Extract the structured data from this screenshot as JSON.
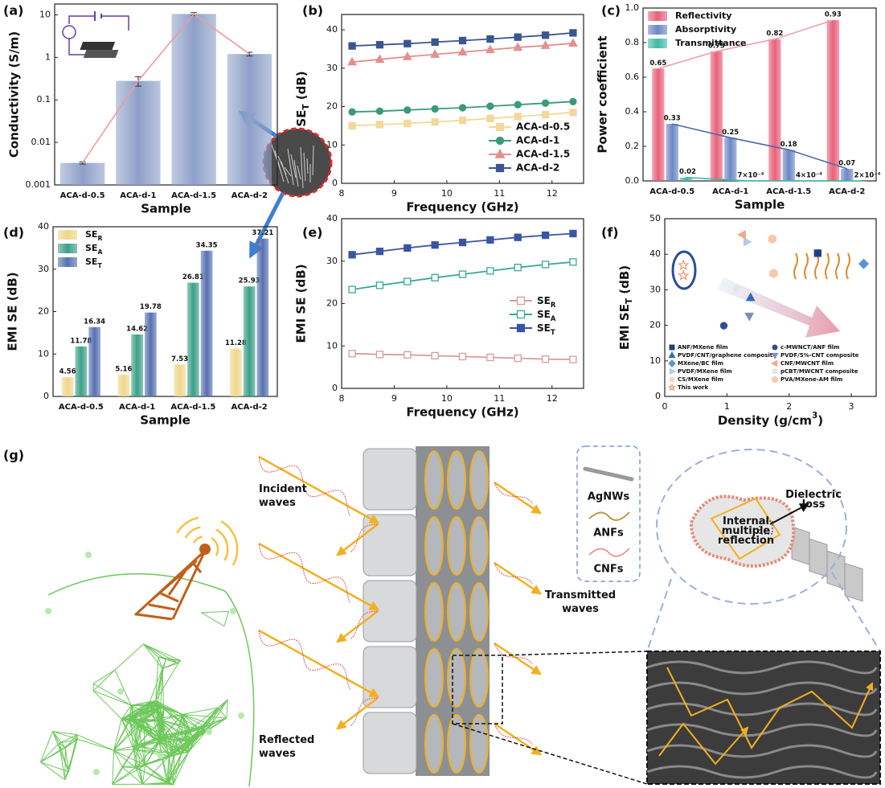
{
  "chart_data": [
    {
      "type": "bar",
      "label": "(a)",
      "ylabel": "Conductivity (S/m)",
      "xlabel": "Sample",
      "log": true,
      "categories": [
        "ACA-d-0.5",
        "ACA-d-1",
        "ACA-d-1.5",
        "ACA-d-2"
      ],
      "series": [
        {
          "color": "#8ea0c9",
          "line_color": "#f29a9a",
          "values": [
            0.0033,
            0.28,
            10.5,
            1.2
          ],
          "errors": [
            0.0002,
            0.07,
            0.8,
            0.12
          ]
        }
      ],
      "ylim": [
        0.001,
        18
      ],
      "yticks": [
        0.001,
        0.01,
        0.1,
        1,
        10
      ],
      "data_labels": false
    },
    {
      "type": "line",
      "label": "(b)",
      "ylabel": [
        {
          "text": "SE"
        },
        {
          "text": "T",
          "sub": true
        },
        {
          "text": " (dB)"
        }
      ],
      "xlabel": "Frequency (GHz)",
      "x": [
        8.2,
        8.725,
        9.25,
        9.775,
        10.3,
        10.825,
        11.35,
        11.875,
        12.4
      ],
      "series": [
        {
          "name": "ACA-d-0.5",
          "color": "#f2d99a",
          "marker": "square",
          "values": [
            15.0,
            15.3,
            15.6,
            16.0,
            16.4,
            16.9,
            17.4,
            17.9,
            18.5
          ]
        },
        {
          "name": "ACA-d-1",
          "color": "#3a9a7a",
          "marker": "circle",
          "values": [
            18.6,
            18.8,
            19.1,
            19.4,
            19.7,
            20.1,
            20.5,
            20.9,
            21.3
          ]
        },
        {
          "name": "ACA-d-1.5",
          "color": "#e3908e",
          "marker": "triangle",
          "values": [
            31.6,
            32.3,
            33.0,
            33.6,
            34.2,
            34.8,
            35.4,
            35.9,
            36.5
          ]
        },
        {
          "name": "ACA-d-2",
          "color": "#3b5590",
          "marker": "square",
          "values": [
            35.8,
            36.1,
            36.4,
            36.8,
            37.2,
            37.6,
            38.1,
            38.6,
            39.2
          ]
        }
      ],
      "xlim": [
        8,
        12.6
      ],
      "xticks": [
        8,
        9,
        10,
        11,
        12
      ],
      "ylim": [
        0,
        44
      ],
      "yticks": [
        0,
        10,
        20,
        30,
        40
      ],
      "legend": "lower right"
    },
    {
      "type": "bar",
      "label": "(c)",
      "ylabel": "Power coefficient",
      "xlabel": "Sample",
      "categories": [
        "ACA-d-0.5",
        "ACA-d-1",
        "ACA-d-1.5",
        "ACA-d-2"
      ],
      "series": [
        {
          "name": "Reflectivity",
          "color": "#e8607a",
          "line_color": "#f2a0a8",
          "values": [
            0.65,
            0.75,
            0.82,
            0.93
          ]
        },
        {
          "name": "Absorptivity",
          "color": "#6b87c6",
          "line_color": "#4a6aaa",
          "values": [
            0.33,
            0.25,
            0.18,
            0.07
          ]
        },
        {
          "name": "Transmittance",
          "color": "#3fb8a8",
          "line_color": "#3fb8a8",
          "values": [
            0.02,
            0.0007,
            0.0004,
            0.0002
          ],
          "value_labels": [
            "0.02",
            "7×10⁻⁴",
            "4×10⁻⁴",
            "2×10⁻⁴"
          ]
        }
      ],
      "ylim": [
        0,
        1.0
      ],
      "yticks": [
        {
          "value": 0,
          "label": "0.0"
        },
        0.2,
        0.4,
        0.6,
        0.8,
        {
          "value": 1.0,
          "label": "1.0"
        }
      ],
      "data_labels": true,
      "legend": "upper left"
    },
    {
      "type": "bar",
      "label": "(d)",
      "ylabel": "EMI SE (dB)",
      "xlabel": "Sample",
      "categories": [
        "ACA-d-0.5",
        "ACA-d-1",
        "ACA-d-1.5",
        "ACA-d-2"
      ],
      "series": [
        {
          "name": [
            {
              "text": "SE"
            },
            {
              "text": "R",
              "sub": true
            }
          ],
          "color": "#f0d68a",
          "values": [
            4.56,
            5.16,
            7.53,
            11.28
          ]
        },
        {
          "name": [
            {
              "text": "SE"
            },
            {
              "text": "A",
              "sub": true
            }
          ],
          "color": "#3a9f87",
          "values": [
            11.78,
            14.62,
            26.81,
            25.93
          ]
        },
        {
          "name": [
            {
              "text": "SE"
            },
            {
              "text": "T",
              "sub": true
            }
          ],
          "color": "#5670b0",
          "values": [
            16.34,
            19.78,
            34.35,
            37.21
          ]
        }
      ],
      "ylim": [
        0,
        40
      ],
      "yticks": [
        0,
        10,
        20,
        30,
        40
      ],
      "data_labels": true,
      "legend": "upper left"
    },
    {
      "type": "line",
      "label": "(e)",
      "ylabel": "EMI SE (dB)",
      "xlabel": "Frequency (GHz)",
      "x": [
        8.2,
        8.725,
        9.25,
        9.775,
        10.3,
        10.825,
        11.35,
        11.875,
        12.4
      ],
      "series": [
        {
          "name": [
            {
              "text": "SE"
            },
            {
              "text": "R",
              "sub": true
            }
          ],
          "color": "#d99b9b",
          "marker": "square",
          "open": true,
          "values": [
            8.2,
            8.0,
            7.9,
            7.7,
            7.5,
            7.3,
            7.1,
            6.9,
            6.8
          ]
        },
        {
          "name": [
            {
              "text": "SE"
            },
            {
              "text": "A",
              "sub": true
            }
          ],
          "color": "#3aa89a",
          "marker": "square",
          "open": true,
          "values": [
            23.3,
            24.3,
            25.2,
            26.1,
            26.9,
            27.7,
            28.5,
            29.2,
            29.8
          ]
        },
        {
          "name": [
            {
              "text": "SE"
            },
            {
              "text": "T",
              "sub": true
            }
          ],
          "color": "#3a55a4",
          "marker": "square",
          "values": [
            31.5,
            32.3,
            33.1,
            33.8,
            34.4,
            35.0,
            35.6,
            36.1,
            36.5
          ]
        }
      ],
      "xlim": [
        8,
        12.6
      ],
      "xticks": [
        8,
        9,
        10,
        11,
        12
      ],
      "ylim": [
        0,
        40
      ],
      "yticks": [
        0,
        10,
        20,
        30,
        40
      ],
      "legend": "center right"
    },
    {
      "type": "scatter",
      "label": "(f)",
      "ylabel": [
        {
          "text": "EMI SE"
        },
        {
          "text": "T",
          "sub": true
        },
        {
          "text": " (dB)"
        }
      ],
      "xlabel": [
        {
          "text": "Density (g/cm"
        },
        {
          "text": "3",
          "sup": true
        },
        {
          "text": ")"
        }
      ],
      "series": [
        {
          "name": "ANF/MXene film",
          "color": "#1f3f8a",
          "marker": "square",
          "x": [
            2.46
          ],
          "values": [
            40.3
          ]
        },
        {
          "name": "PVDF/CNT/graphene composite",
          "color": "#2f6db5",
          "marker": "triangle",
          "x": [
            1.38
          ],
          "values": [
            27.8
          ]
        },
        {
          "name": "MXene/BC film",
          "color": "#5b95cf",
          "marker": "diamond",
          "x": [
            3.2
          ],
          "values": [
            37.3
          ]
        },
        {
          "name": "PVDF/MXene film",
          "color": "#b9c9e8",
          "marker": "triangle-right",
          "x": [
            1.32
          ],
          "values": [
            43.5
          ]
        },
        {
          "name": "CS/MXene film",
          "color": "#f6d6c6",
          "marker": "circle",
          "x": [
            1.75
          ],
          "values": [
            34.8
          ]
        },
        {
          "name": "This work",
          "color": "#f29a7a",
          "marker": "star",
          "open": true,
          "x": [
            0.3,
            0.3
          ],
          "values": [
            36.9,
            34.0
          ]
        },
        {
          "name": "c-MWNCT/ANF film",
          "color": "#2d4f8f",
          "marker": "circle",
          "x": [
            0.95
          ],
          "values": [
            19.9
          ]
        },
        {
          "name": "PVDF/5%-CNT composite",
          "color": "#7f8fb8",
          "marker": "triangle-down",
          "x": [
            1.36
          ],
          "values": [
            22.6
          ]
        },
        {
          "name": "CNF/MWCNT film",
          "color": "#f3a68c",
          "marker": "triangle-left",
          "x": [
            1.25
          ],
          "values": [
            45.5
          ]
        },
        {
          "name": "pCBT/MWCNT composite",
          "color": "#dfe7f3",
          "marker": "circle",
          "x": [
            1.15
          ],
          "values": [
            30.4
          ]
        },
        {
          "name": "PVA/MXene-AM film",
          "color": "#f7c9a8",
          "marker": "hexagon",
          "x": [
            1.73,
            1.75
          ],
          "values": [
            44.3,
            34.6
          ]
        }
      ],
      "xlim": [
        0,
        3.4
      ],
      "xticks": [
        0,
        1,
        2,
        3
      ],
      "ylim": [
        0,
        50
      ],
      "yticks": [
        0,
        10,
        20,
        30,
        40,
        50
      ],
      "legend": "lower left",
      "legend_columns": 2
    }
  ],
  "diagram": {
    "label": "(g)",
    "incident": [
      "Incident",
      "waves"
    ],
    "reflected": [
      "Reflected",
      "waves"
    ],
    "transmitted": [
      "Transmitted",
      "waves"
    ],
    "legend": [
      "AgNWs",
      "ANFs",
      "CNFs"
    ],
    "dielectric": [
      "Dielectric",
      "loss"
    ],
    "internal": [
      "Internal",
      "multiple",
      "reflection"
    ]
  }
}
